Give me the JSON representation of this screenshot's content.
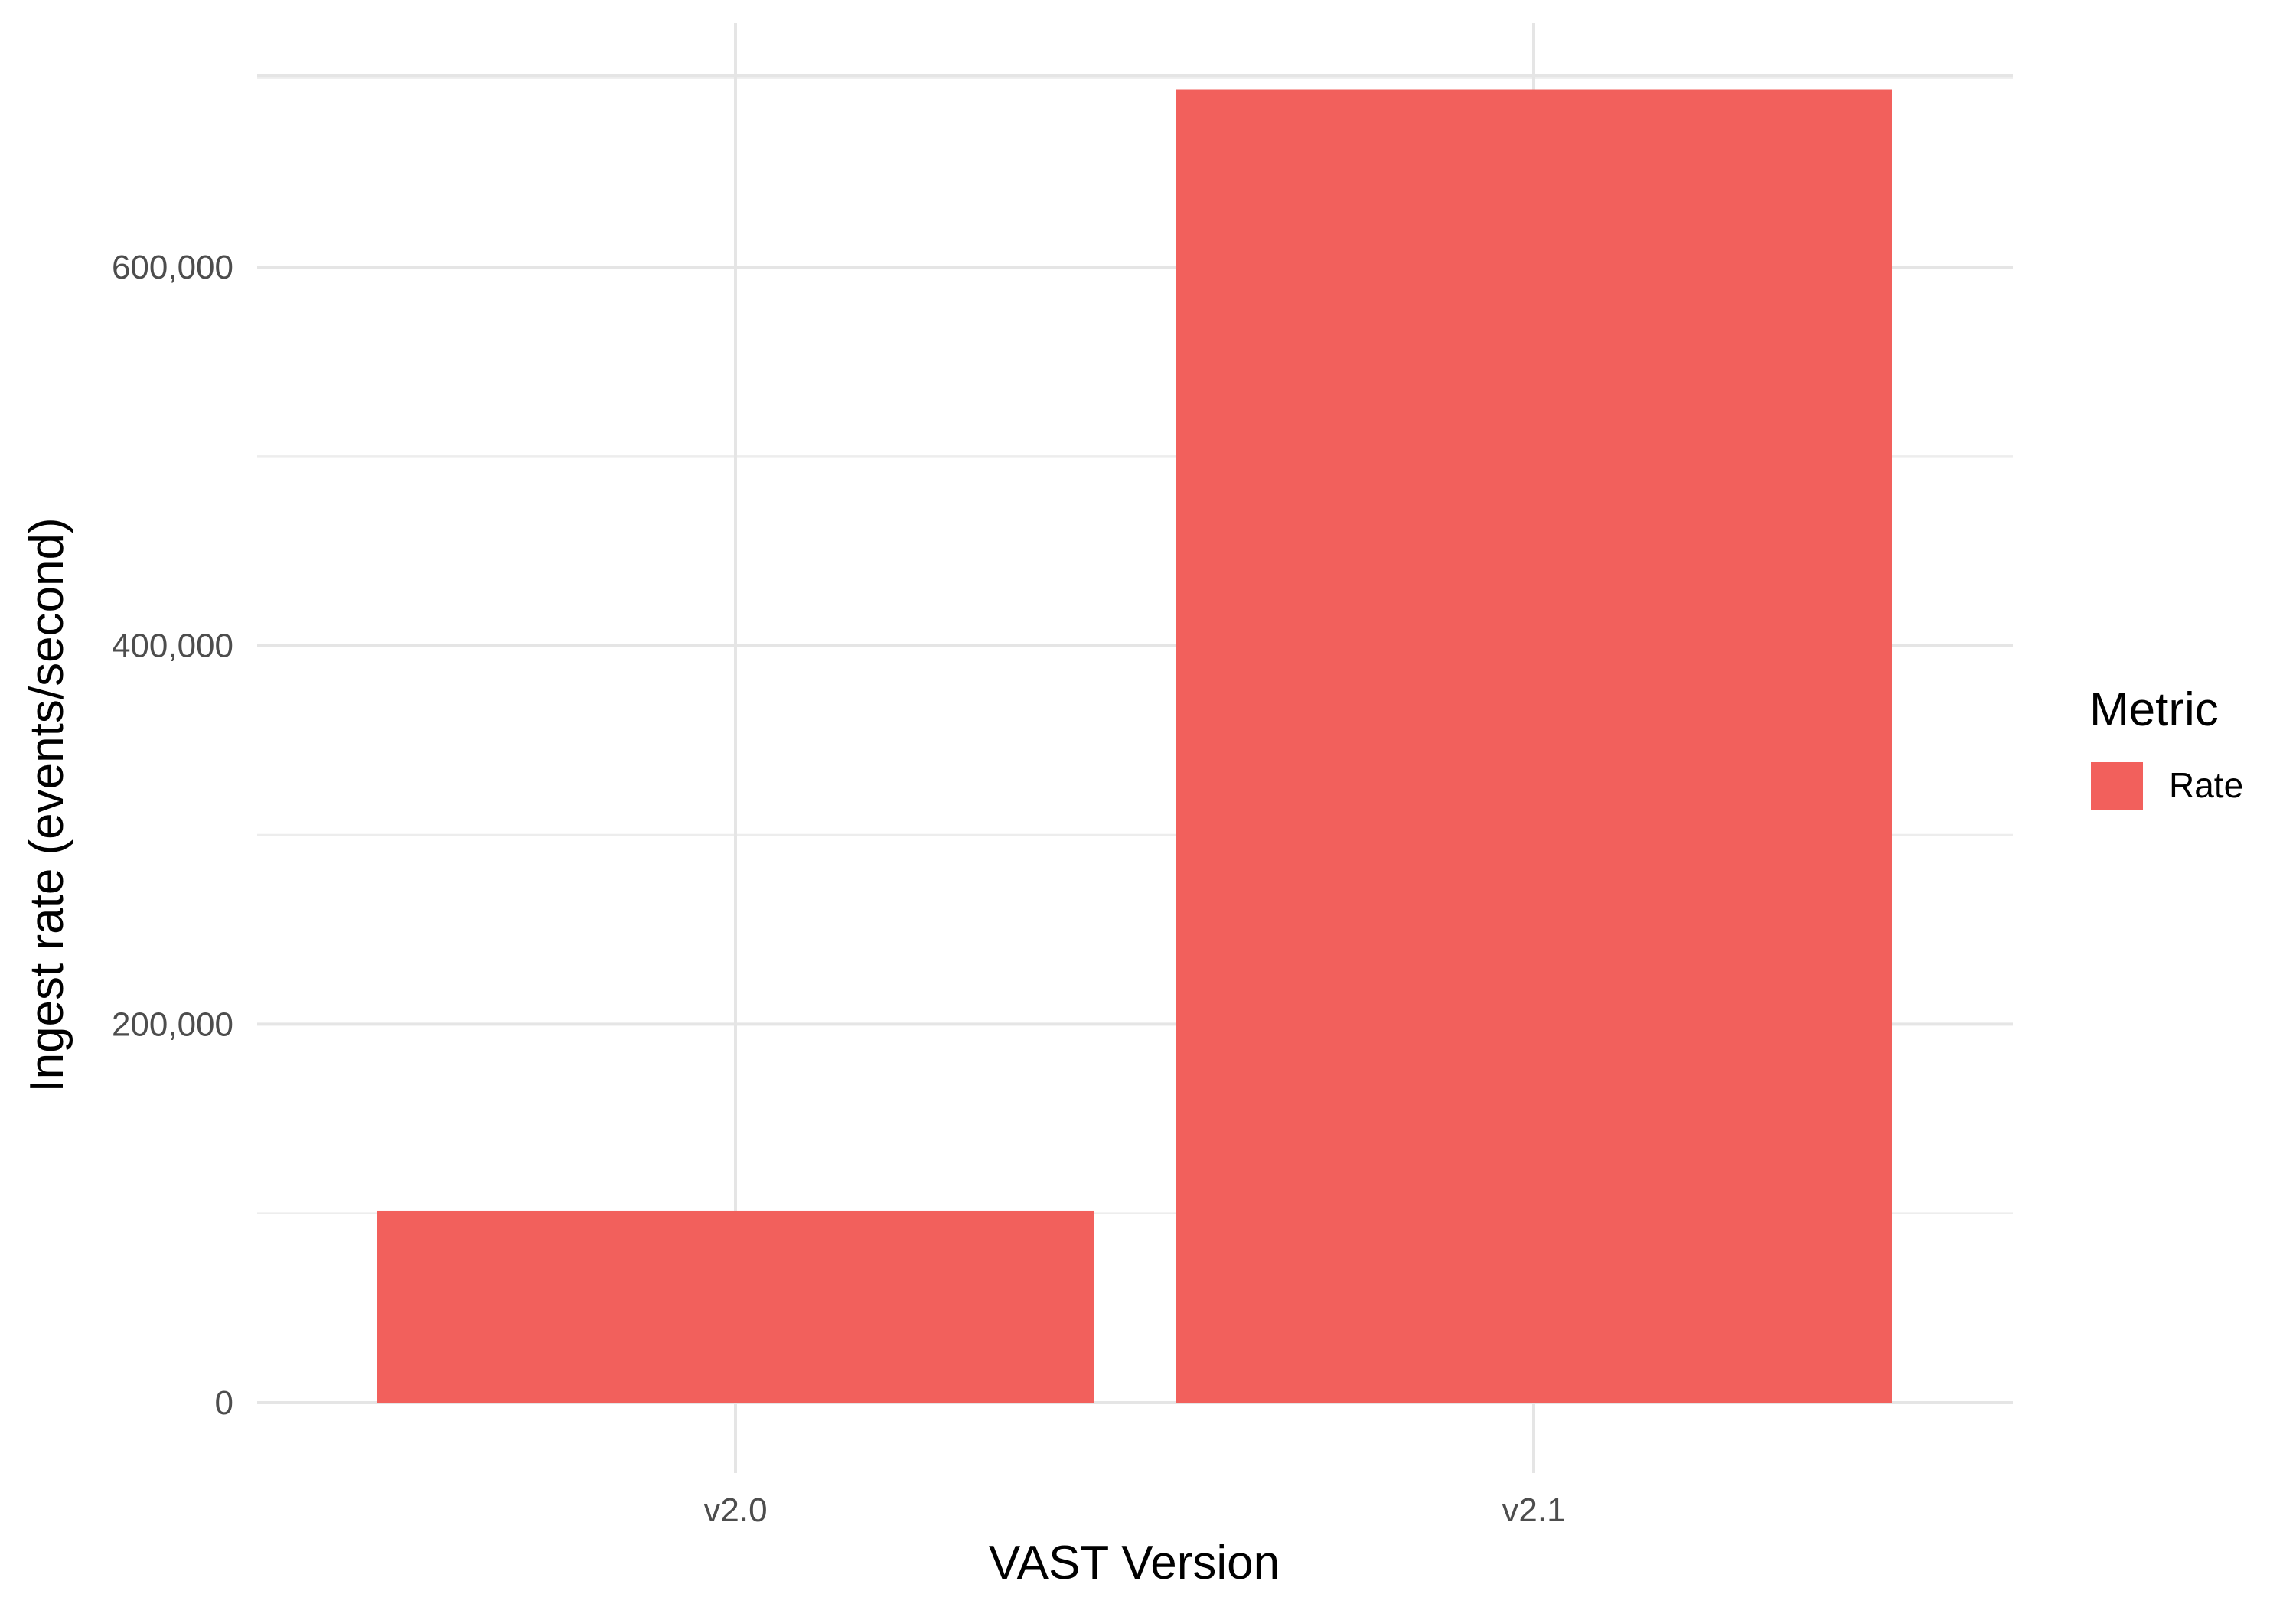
{
  "chart_data": {
    "type": "bar",
    "title": "",
    "xlabel": "VAST Version",
    "ylabel": "Ingest rate (events/second)",
    "categories": [
      "v2.0",
      "v2.1"
    ],
    "series": [
      {
        "name": "Rate",
        "values": [
          101500,
          694000
        ],
        "color": "#f2605c"
      }
    ],
    "ylim": [
      0,
      700000
    ],
    "y_ticks": [
      0,
      200000,
      400000,
      600000
    ],
    "y_tick_labels": [
      "0",
      "200,000",
      "400,000",
      "600,000"
    ],
    "grid": true,
    "legend": {
      "title": "Metric",
      "placement": "right"
    },
    "background": "#ffffff"
  }
}
